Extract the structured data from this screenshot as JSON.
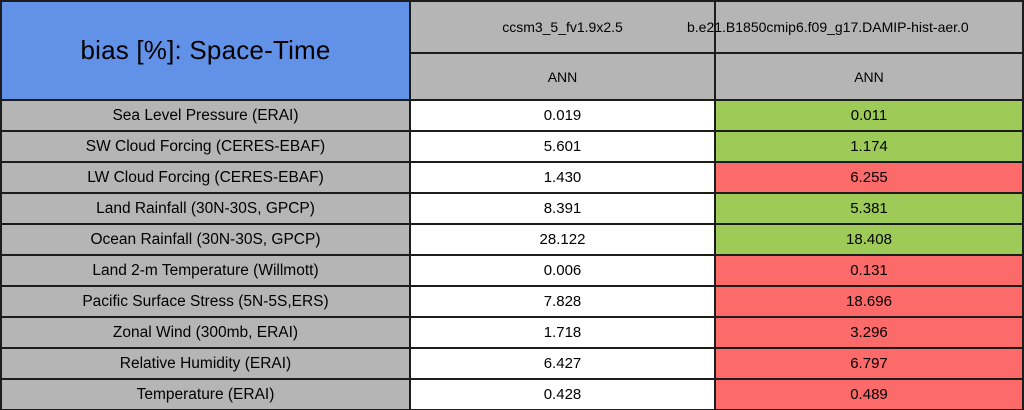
{
  "chart_data": {
    "type": "table",
    "title": "bias [%]: Space-Time",
    "column_headers": [
      "ccsm3_5_fv1.9x2.5",
      "b.e21.B1850cmip6.f09_g17.DAMIP-hist-aer.0"
    ],
    "subheaders": [
      "ANN",
      "ANN"
    ],
    "rows": [
      {
        "label": "Sea Level Pressure (ERAI)",
        "values": [
          "0.019",
          "0.011"
        ],
        "status": "better"
      },
      {
        "label": "SW Cloud Forcing (CERES-EBAF)",
        "values": [
          "5.601",
          "1.174"
        ],
        "status": "better"
      },
      {
        "label": "LW Cloud Forcing (CERES-EBAF)",
        "values": [
          "1.430",
          "6.255"
        ],
        "status": "worse"
      },
      {
        "label": "Land Rainfall (30N-30S, GPCP)",
        "values": [
          "8.391",
          "5.381"
        ],
        "status": "better"
      },
      {
        "label": "Ocean Rainfall (30N-30S, GPCP)",
        "values": [
          "28.122",
          "18.408"
        ],
        "status": "better"
      },
      {
        "label": "Land 2-m Temperature (Willmott)",
        "values": [
          "0.006",
          "0.131"
        ],
        "status": "worse"
      },
      {
        "label": "Pacific Surface Stress (5N-5S,ERS)",
        "values": [
          "7.828",
          "18.696"
        ],
        "status": "worse"
      },
      {
        "label": "Zonal Wind (300mb, ERAI)",
        "values": [
          "1.718",
          "3.296"
        ],
        "status": "worse"
      },
      {
        "label": "Relative Humidity (ERAI)",
        "values": [
          "6.427",
          "6.797"
        ],
        "status": "worse"
      },
      {
        "label": "Temperature (ERAI)",
        "values": [
          "0.428",
          "0.489"
        ],
        "status": "worse"
      }
    ],
    "status_colors": {
      "better": "#9ecb58",
      "worse": "#fc6a6a"
    },
    "colors": {
      "title_bg": "#6292e8",
      "header_bg": "#b5b5b5",
      "label_bg": "#b5b5b5",
      "value_bg": "#ffffff",
      "border": "#1c1c1c"
    },
    "layout_hints": {
      "grid": "on",
      "second_model_column_colored_by_status": true
    }
  }
}
